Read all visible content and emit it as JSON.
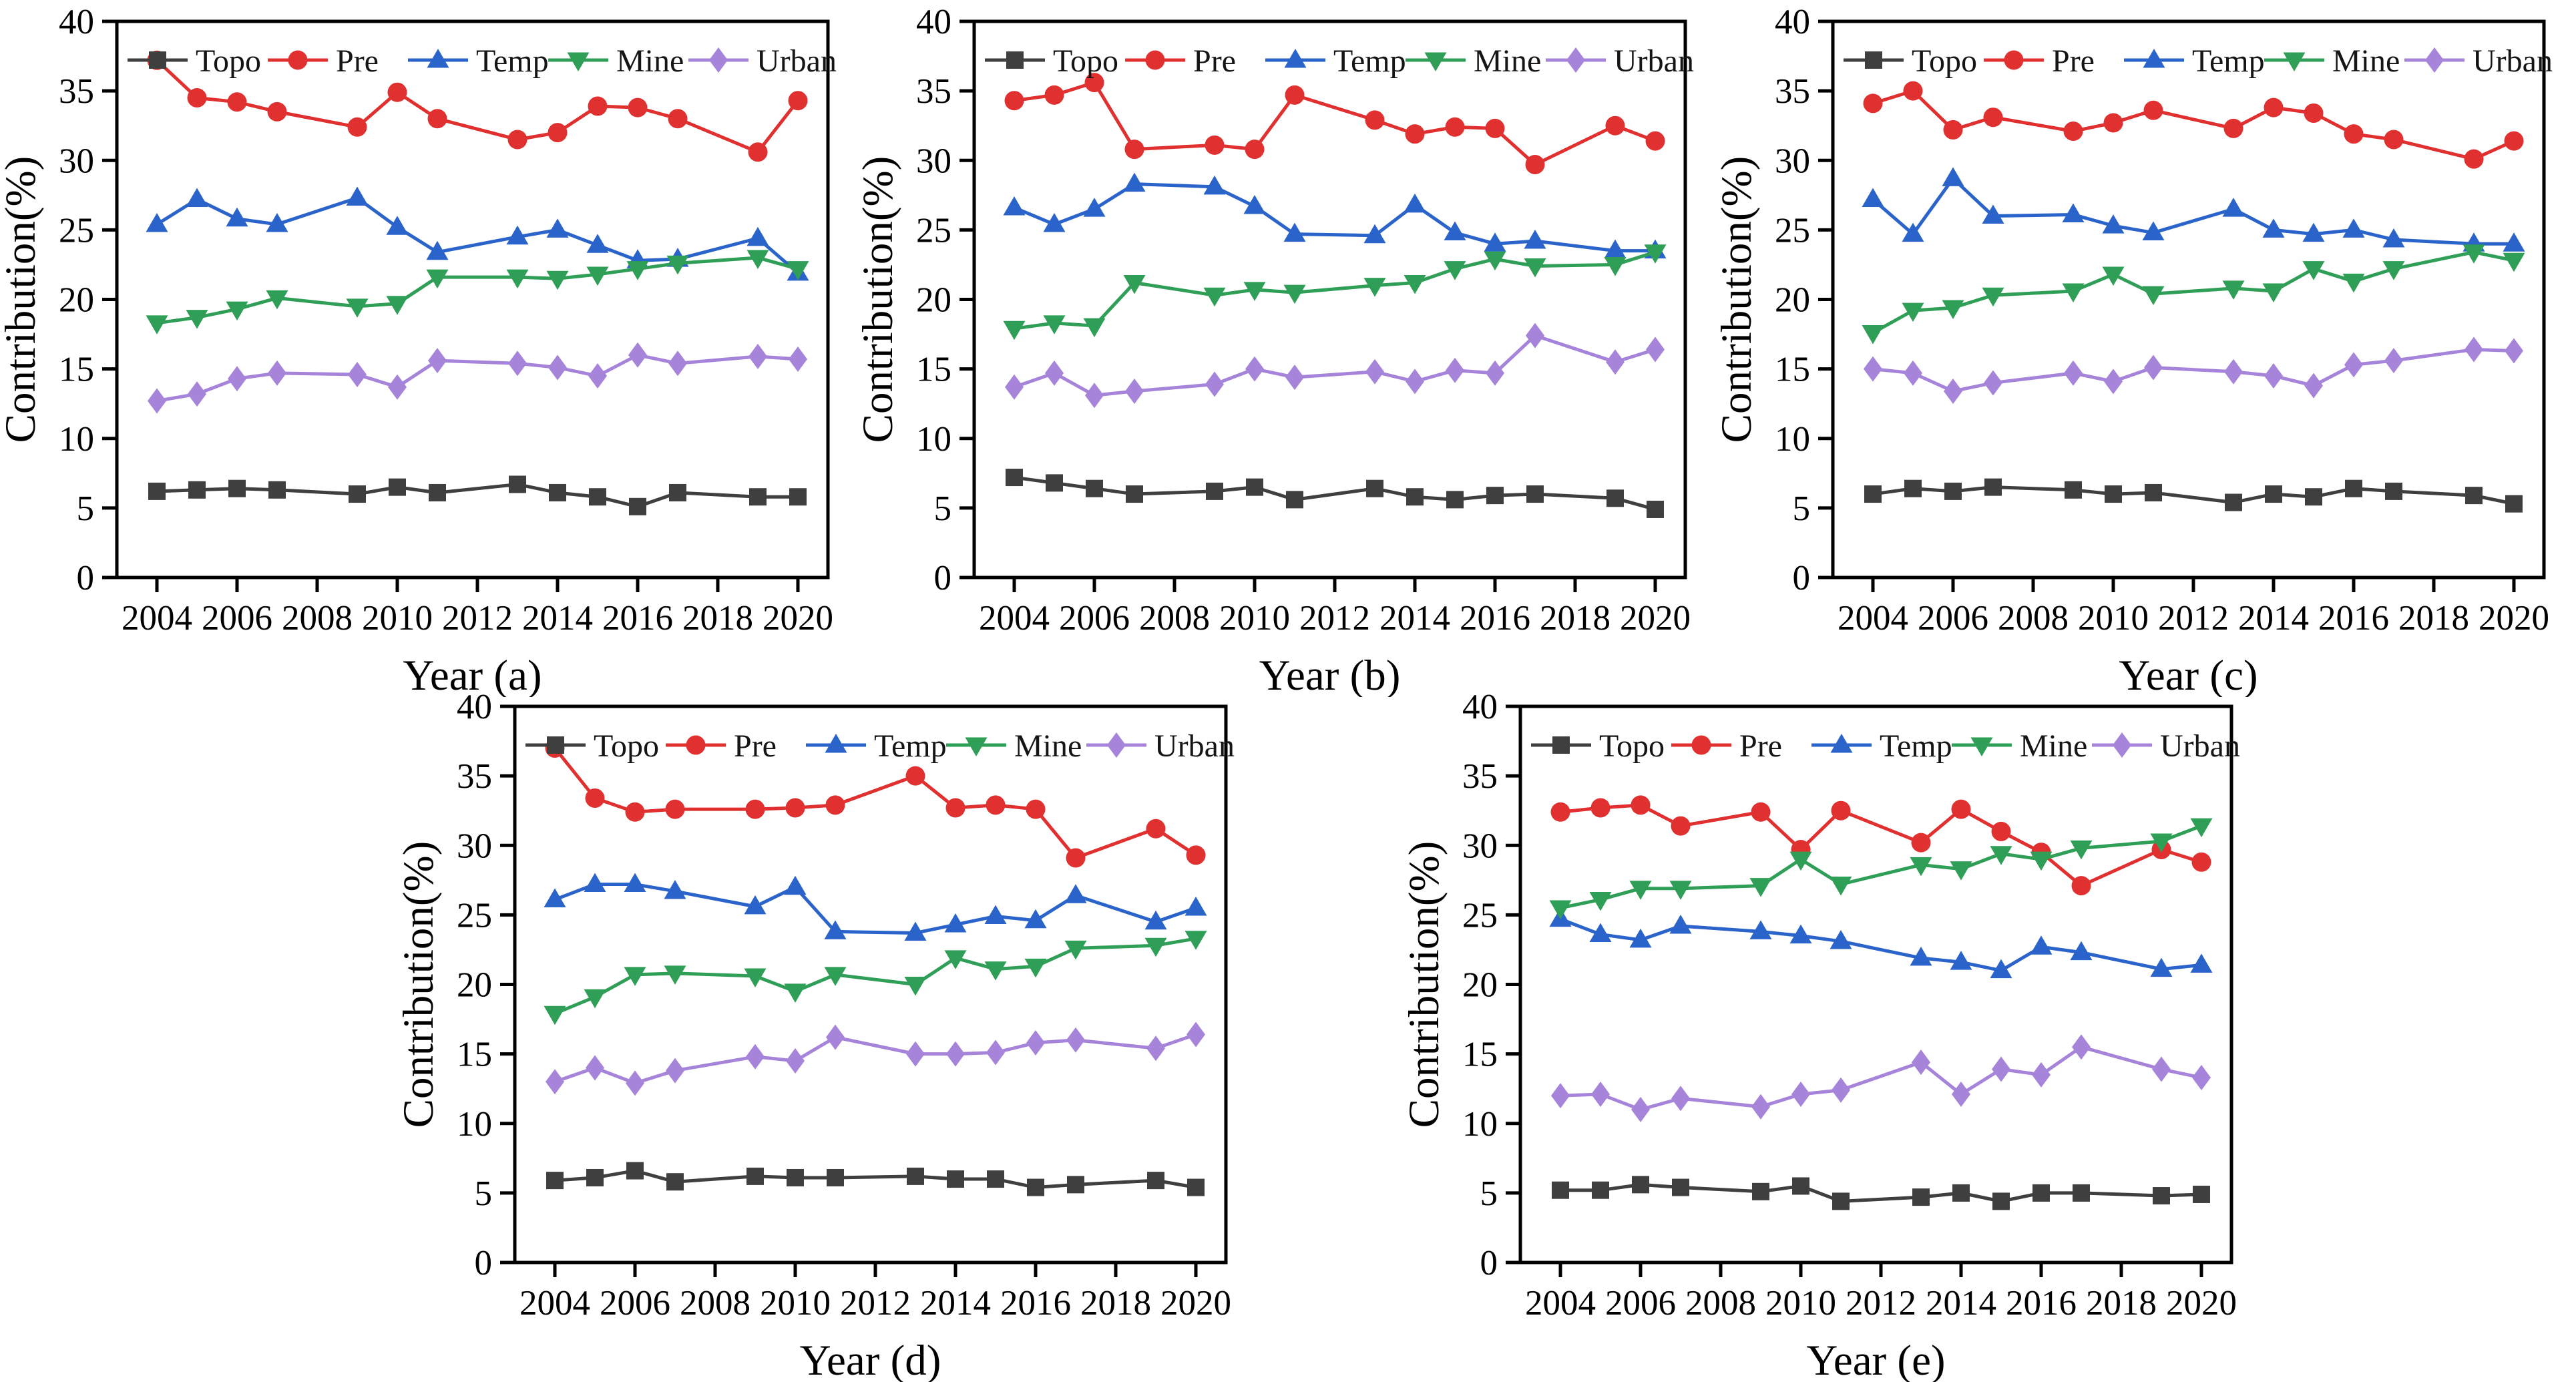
{
  "figure": {
    "background": "#ffffff",
    "panel_count": 5
  },
  "axis": {
    "ylabel": "Contribution(%)",
    "ylim": [
      0,
      40
    ],
    "y_ticks": [
      0,
      5,
      10,
      15,
      20,
      25,
      30,
      35,
      40
    ],
    "x_ticks": [
      2004,
      2006,
      2008,
      2010,
      2012,
      2014,
      2016,
      2018,
      2020
    ],
    "xlim": [
      2003,
      2020.75
    ],
    "grid": false,
    "legend_position": "top-inside-row"
  },
  "series_meta": [
    {
      "name": "Topo",
      "color": "#3f3f3f",
      "marker": "square"
    },
    {
      "name": "Pre",
      "color": "#e13030",
      "marker": "circle"
    },
    {
      "name": "Temp",
      "color": "#2a63c9",
      "marker": "triangle-up"
    },
    {
      "name": "Mine",
      "color": "#2f9e56",
      "marker": "triangle-down"
    },
    {
      "name": "Urban",
      "color": "#a684da",
      "marker": "diamond"
    }
  ],
  "chart_data": [
    {
      "type": "line",
      "id": "a",
      "xlabel": "Year (a)",
      "ylabel": "Contribution(%)",
      "x": [
        2004,
        2005,
        2006,
        2007,
        2009,
        2010,
        2011,
        2013,
        2014,
        2015,
        2016,
        2017,
        2019,
        2020
      ],
      "ylim": [
        0,
        40
      ],
      "series": [
        {
          "name": "Topo",
          "values": [
            6.2,
            6.3,
            6.4,
            6.3,
            6.0,
            6.5,
            6.1,
            6.7,
            6.1,
            5.8,
            5.1,
            6.1,
            5.8,
            5.8
          ]
        },
        {
          "name": "Pre",
          "values": [
            37.2,
            34.5,
            34.2,
            33.5,
            32.4,
            34.9,
            33.0,
            31.5,
            32.0,
            33.9,
            33.8,
            33.0,
            30.6,
            34.3
          ]
        },
        {
          "name": "Temp",
          "values": [
            25.4,
            27.2,
            25.8,
            25.4,
            27.3,
            25.2,
            23.4,
            24.5,
            25.0,
            23.9,
            22.8,
            22.9,
            24.4,
            21.9
          ]
        },
        {
          "name": "Mine",
          "values": [
            18.3,
            18.7,
            19.3,
            20.1,
            19.5,
            19.7,
            21.6,
            21.6,
            21.5,
            21.8,
            22.2,
            22.6,
            23.0,
            22.2
          ]
        },
        {
          "name": "Urban",
          "values": [
            12.7,
            13.2,
            14.3,
            14.7,
            14.6,
            13.7,
            15.6,
            15.4,
            15.1,
            14.5,
            16.0,
            15.4,
            15.9,
            15.7
          ]
        }
      ]
    },
    {
      "type": "line",
      "id": "b",
      "xlabel": "Year (b)",
      "ylabel": "Contribution(%)",
      "x": [
        2004,
        2005,
        2006,
        2007,
        2009,
        2010,
        2011,
        2013,
        2014,
        2015,
        2016,
        2017,
        2019,
        2020
      ],
      "ylim": [
        0,
        40
      ],
      "series": [
        {
          "name": "Topo",
          "values": [
            7.2,
            6.8,
            6.4,
            6.0,
            6.2,
            6.5,
            5.6,
            6.4,
            5.8,
            5.6,
            5.9,
            6.0,
            5.7,
            4.9
          ]
        },
        {
          "name": "Pre",
          "values": [
            34.3,
            34.7,
            35.6,
            30.8,
            31.1,
            30.8,
            34.7,
            32.9,
            31.9,
            32.4,
            32.3,
            29.7,
            32.5,
            31.4
          ]
        },
        {
          "name": "Temp",
          "values": [
            26.6,
            25.4,
            26.5,
            28.3,
            28.1,
            26.7,
            24.7,
            24.6,
            26.8,
            24.8,
            24.0,
            24.2,
            23.5,
            23.5
          ]
        },
        {
          "name": "Mine",
          "values": [
            17.9,
            18.3,
            18.1,
            21.2,
            20.3,
            20.7,
            20.5,
            21.0,
            21.2,
            22.2,
            22.9,
            22.4,
            22.5,
            23.4
          ]
        },
        {
          "name": "Urban",
          "values": [
            13.7,
            14.7,
            13.1,
            13.4,
            13.9,
            15.0,
            14.4,
            14.8,
            14.1,
            14.9,
            14.7,
            17.4,
            15.5,
            16.4
          ]
        }
      ]
    },
    {
      "type": "line",
      "id": "c",
      "xlabel": "Year (c)",
      "ylabel": "Contribution(%)",
      "x": [
        2004,
        2005,
        2006,
        2007,
        2009,
        2010,
        2011,
        2013,
        2014,
        2015,
        2016,
        2017,
        2019,
        2020
      ],
      "ylim": [
        0,
        40
      ],
      "series": [
        {
          "name": "Topo",
          "values": [
            6.0,
            6.4,
            6.2,
            6.5,
            6.3,
            6.0,
            6.1,
            5.4,
            6.0,
            5.8,
            6.4,
            6.2,
            5.9,
            5.3
          ]
        },
        {
          "name": "Pre",
          "values": [
            34.1,
            35.0,
            32.2,
            33.1,
            32.1,
            32.7,
            33.6,
            32.3,
            33.8,
            33.4,
            31.9,
            31.5,
            30.1,
            31.4
          ]
        },
        {
          "name": "Temp",
          "values": [
            27.2,
            24.7,
            28.7,
            26.0,
            26.1,
            25.3,
            24.8,
            26.5,
            25.0,
            24.7,
            25.0,
            24.3,
            24.0,
            24.0
          ]
        },
        {
          "name": "Mine",
          "values": [
            17.6,
            19.2,
            19.4,
            20.3,
            20.6,
            21.8,
            20.4,
            20.8,
            20.6,
            22.2,
            21.3,
            22.2,
            23.4,
            22.8
          ]
        },
        {
          "name": "Urban",
          "values": [
            15.0,
            14.7,
            13.4,
            14.0,
            14.7,
            14.1,
            15.1,
            14.8,
            14.5,
            13.8,
            15.3,
            15.6,
            16.4,
            16.3
          ]
        }
      ]
    },
    {
      "type": "line",
      "id": "d",
      "xlabel": "Year (d)",
      "ylabel": "Contribution(%)",
      "x": [
        2004,
        2005,
        2006,
        2007,
        2009,
        2010,
        2011,
        2013,
        2014,
        2015,
        2016,
        2017,
        2019,
        2020
      ],
      "ylim": [
        0,
        40
      ],
      "series": [
        {
          "name": "Topo",
          "values": [
            5.9,
            6.1,
            6.6,
            5.8,
            6.2,
            6.1,
            6.1,
            6.2,
            6.0,
            6.0,
            5.4,
            5.6,
            5.9,
            5.4
          ]
        },
        {
          "name": "Pre",
          "values": [
            37.0,
            33.4,
            32.4,
            32.6,
            32.6,
            32.7,
            32.9,
            35.0,
            32.7,
            32.9,
            32.6,
            29.1,
            31.2,
            29.3
          ]
        },
        {
          "name": "Temp",
          "values": [
            26.1,
            27.2,
            27.2,
            26.7,
            25.6,
            27.0,
            23.8,
            23.7,
            24.3,
            24.9,
            24.6,
            26.4,
            24.5,
            25.5
          ]
        },
        {
          "name": "Mine",
          "values": [
            17.9,
            19.1,
            20.7,
            20.8,
            20.6,
            19.5,
            20.7,
            20.0,
            21.9,
            21.1,
            21.3,
            22.6,
            22.8,
            23.3
          ]
        },
        {
          "name": "Urban",
          "values": [
            13.0,
            14.0,
            12.9,
            13.8,
            14.8,
            14.5,
            16.2,
            15.0,
            15.0,
            15.1,
            15.8,
            16.0,
            15.4,
            16.4
          ]
        }
      ]
    },
    {
      "type": "line",
      "id": "e",
      "xlabel": "Year (e)",
      "ylabel": "Contribution(%)",
      "x": [
        2004,
        2005,
        2006,
        2007,
        2009,
        2010,
        2011,
        2013,
        2014,
        2015,
        2016,
        2017,
        2019,
        2020
      ],
      "ylim": [
        0,
        40
      ],
      "series": [
        {
          "name": "Topo",
          "values": [
            5.2,
            5.2,
            5.6,
            5.4,
            5.1,
            5.5,
            4.4,
            4.7,
            5.0,
            4.4,
            5.0,
            5.0,
            4.8,
            4.9
          ]
        },
        {
          "name": "Pre",
          "values": [
            32.4,
            32.7,
            32.9,
            31.4,
            32.4,
            29.7,
            32.5,
            30.2,
            32.6,
            31.0,
            29.5,
            27.1,
            29.7,
            28.8
          ]
        },
        {
          "name": "Temp",
          "values": [
            24.7,
            23.6,
            23.2,
            24.2,
            23.8,
            23.5,
            23.1,
            21.9,
            21.6,
            21.0,
            22.7,
            22.3,
            21.1,
            21.4
          ]
        },
        {
          "name": "Mine",
          "values": [
            25.5,
            26.1,
            26.9,
            26.9,
            27.1,
            29.0,
            27.2,
            28.6,
            28.3,
            29.4,
            29.0,
            29.8,
            30.3,
            31.4
          ]
        },
        {
          "name": "Urban",
          "values": [
            12.0,
            12.1,
            11.0,
            11.8,
            11.2,
            12.1,
            12.4,
            14.4,
            12.1,
            13.9,
            13.5,
            15.5,
            13.9,
            13.3
          ]
        }
      ]
    }
  ]
}
